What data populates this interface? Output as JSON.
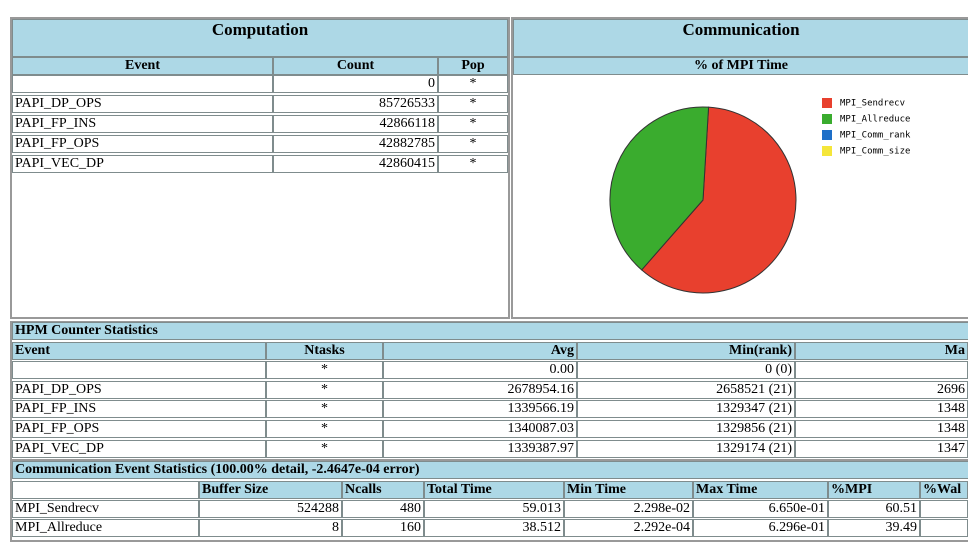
{
  "computation": {
    "title": "Computation",
    "headers": [
      "Event",
      "Count",
      "Pop"
    ],
    "rows": [
      {
        "event": "",
        "count": "0",
        "pop": "*"
      },
      {
        "event": "PAPI_DP_OPS",
        "count": "85726533",
        "pop": "*"
      },
      {
        "event": "PAPI_FP_INS",
        "count": "42866118",
        "pop": "*"
      },
      {
        "event": "PAPI_FP_OPS",
        "count": "42882785",
        "pop": "*"
      },
      {
        "event": "PAPI_VEC_DP",
        "count": "42860415",
        "pop": "*"
      }
    ]
  },
  "communication": {
    "title": "Communication",
    "subtitle": "% of MPI Time",
    "legend": [
      {
        "label": "MPI_Sendrecv",
        "color": "#e8402e"
      },
      {
        "label": "MPI_Allreduce",
        "color": "#3aac2e"
      },
      {
        "label": "MPI_Comm_rank",
        "color": "#1e6fc8"
      },
      {
        "label": "MPI_Comm_size",
        "color": "#f5e63a"
      }
    ]
  },
  "chart_data": {
    "type": "pie",
    "categories": [
      "MPI_Sendrecv",
      "MPI_Allreduce",
      "MPI_Comm_rank",
      "MPI_Comm_size"
    ],
    "values": [
      60.51,
      39.49,
      0,
      0
    ],
    "title": "% of MPI Time",
    "legend": "top-right",
    "colors": [
      "#e8402e",
      "#3aac2e",
      "#1e6fc8",
      "#f5e63a"
    ]
  },
  "hpm": {
    "title": "HPM Counter Statistics",
    "headers": [
      "Event",
      "Ntasks",
      "Avg",
      "Min(rank)",
      "Ma"
    ],
    "rows": [
      {
        "event": "",
        "ntasks": "*",
        "avg": "0.00",
        "min": "0 (0)",
        "max": ""
      },
      {
        "event": "PAPI_DP_OPS",
        "ntasks": "*",
        "avg": "2678954.16",
        "min": "2658521 (21)",
        "max": "2696"
      },
      {
        "event": "PAPI_FP_INS",
        "ntasks": "*",
        "avg": "1339566.19",
        "min": "1329347 (21)",
        "max": "1348"
      },
      {
        "event": "PAPI_FP_OPS",
        "ntasks": "*",
        "avg": "1340087.03",
        "min": "1329856 (21)",
        "max": "1348"
      },
      {
        "event": "PAPI_VEC_DP",
        "ntasks": "*",
        "avg": "1339387.97",
        "min": "1329174 (21)",
        "max": "1347"
      }
    ]
  },
  "comm_events": {
    "title": "Communication Event Statistics (100.00% detail, -2.4647e-04 error)",
    "headers": [
      "",
      "Buffer Size",
      "Ncalls",
      "Total Time",
      "Min Time",
      "Max Time",
      "%MPI",
      "%Wal"
    ],
    "rows": [
      {
        "name": "MPI_Sendrecv",
        "buffer": "524288",
        "ncalls": "480",
        "total": "59.013",
        "min": "2.298e-02",
        "max": "6.650e-01",
        "mpi": "60.51",
        "wall": ""
      },
      {
        "name": "MPI_Allreduce",
        "buffer": "8",
        "ncalls": "160",
        "total": "38.512",
        "min": "2.292e-04",
        "max": "6.296e-01",
        "mpi": "39.49",
        "wall": ""
      }
    ]
  }
}
